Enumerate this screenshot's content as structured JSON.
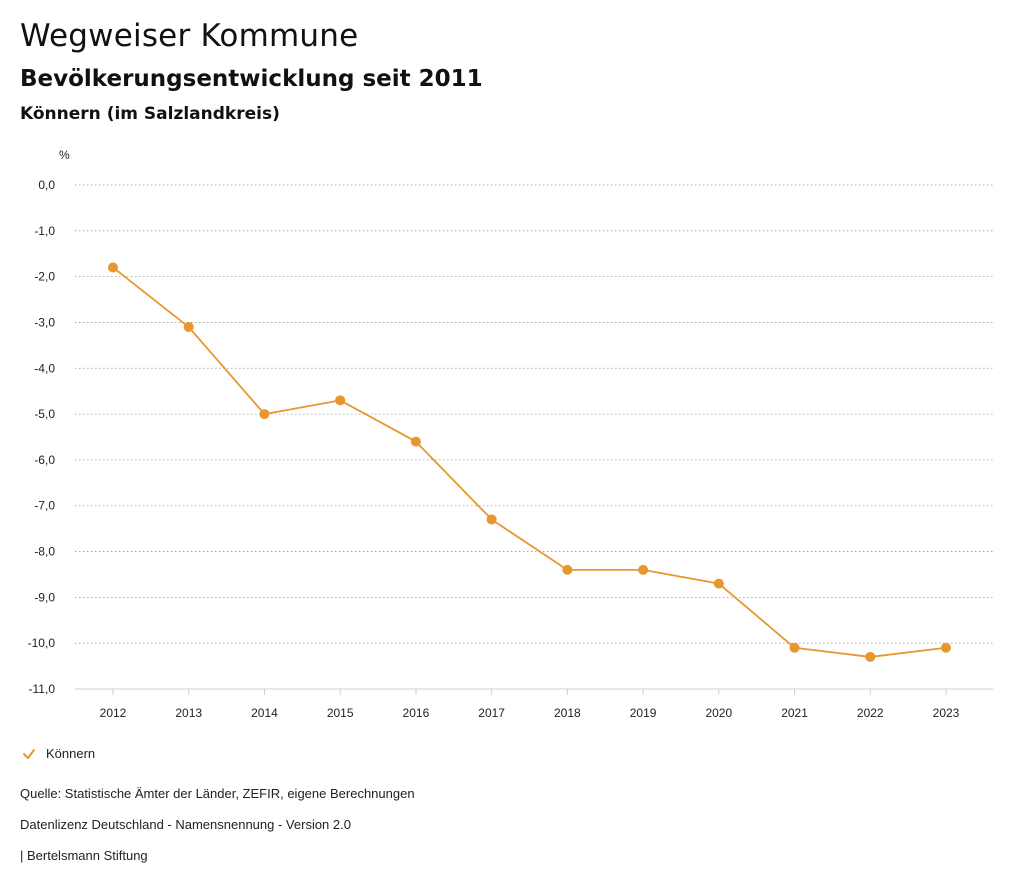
{
  "header": {
    "title": "Wegweiser Kommune",
    "subtitle": "Bevölkerungsentwicklung seit 2011",
    "region": "Könnern (im Salzlandkreis)"
  },
  "legend": {
    "label": "Könnern",
    "color": "#E8972E"
  },
  "footer": {
    "source": "Quelle: Statistische Ämter der Länder, ZEFIR, eigene Berechnungen",
    "license": "Datenlizenz Deutschland - Namensnennung - Version 2.0",
    "publisher": "| Bertelsmann Stiftung"
  },
  "chart_data": {
    "type": "line",
    "title": "Bevölkerungsentwicklung seit 2011",
    "xlabel": "",
    "ylabel": "%",
    "categories": [
      "2012",
      "2013",
      "2014",
      "2015",
      "2016",
      "2017",
      "2018",
      "2019",
      "2020",
      "2021",
      "2022",
      "2023"
    ],
    "series": [
      {
        "name": "Könnern",
        "color": "#E8972E",
        "values": [
          -1.8,
          -3.1,
          -5.0,
          -4.7,
          -5.6,
          -7.3,
          -8.4,
          -8.4,
          -8.7,
          -10.1,
          -10.3,
          -10.1
        ]
      }
    ],
    "yticks": [
      "0,0",
      "-1,0",
      "-2,0",
      "-3,0",
      "-4,0",
      "-5,0",
      "-6,0",
      "-7,0",
      "-8,0",
      "-9,0",
      "-10,0",
      "-11,0"
    ],
    "ylim": [
      -11,
      0
    ],
    "grid": true,
    "legend_position": "bottom-left"
  }
}
